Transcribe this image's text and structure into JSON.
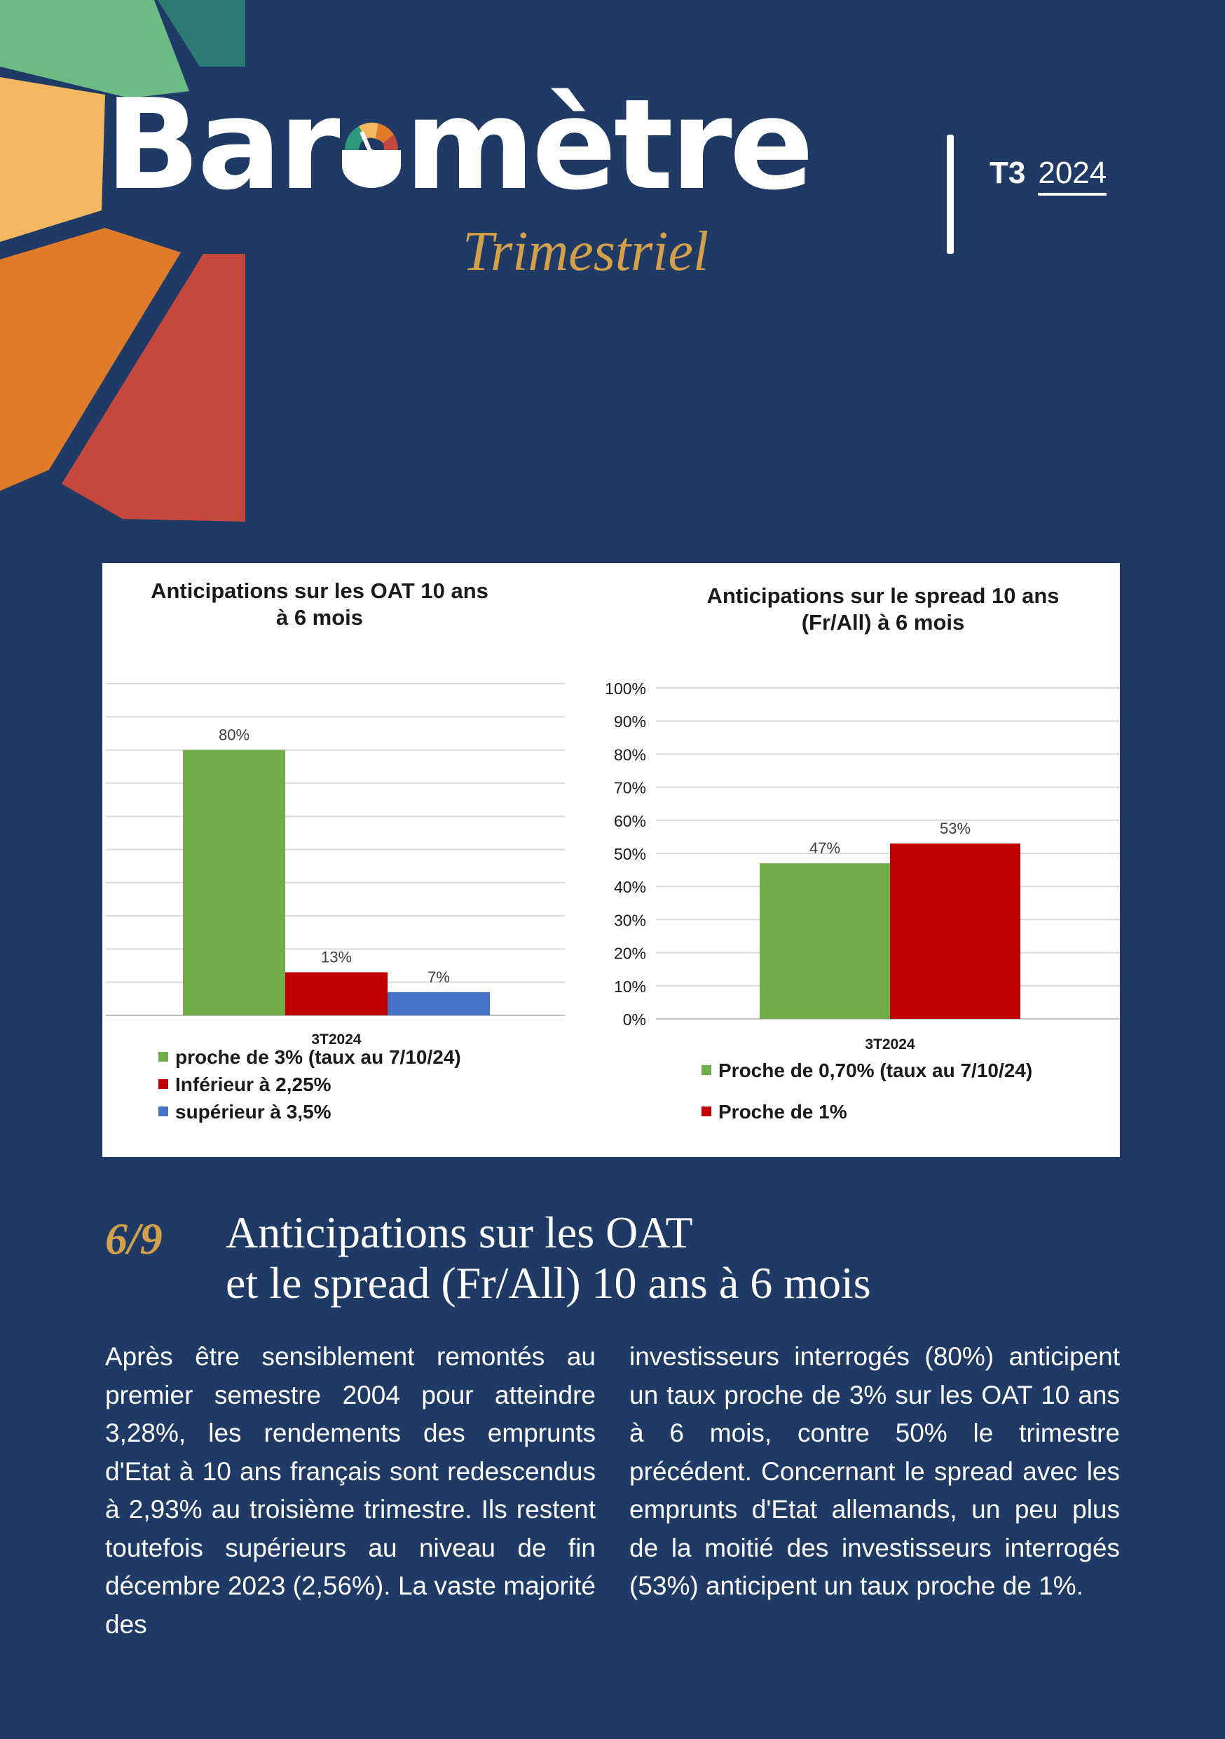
{
  "header": {
    "brand": "Baromètre",
    "brand_before": "Bar",
    "brand_after": "mètre",
    "subtitle": "Trimestriel",
    "quarter": "T3",
    "year": "2024"
  },
  "colors": {
    "background": "#203a66",
    "accent_gold": "#d4a04a",
    "green": "#70ad47",
    "red": "#c00000",
    "blue": "#4472c4"
  },
  "chart_data": [
    {
      "type": "bar",
      "title_lines": [
        "Anticipations sur les OAT 10 ans",
        "à 6 mois"
      ],
      "categories": [
        "3T2024"
      ],
      "series": [
        {
          "name": "proche de 3% (taux au 7/10/24)",
          "values": [
            80
          ],
          "color": "#70ad47",
          "label": "80%"
        },
        {
          "name": "Inférieur à 2,25%",
          "values": [
            13
          ],
          "color": "#c00000",
          "label": "13%"
        },
        {
          "name": "supérieur à 3,5%",
          "values": [
            7
          ],
          "color": "#4472c4",
          "label": "7%"
        }
      ],
      "ylim": [
        0,
        100
      ],
      "y_axis_labels_shown": false,
      "grid": true,
      "legend": "bottom-left"
    },
    {
      "type": "bar",
      "title_lines": [
        "Anticipations sur le spread 10 ans",
        "(Fr/All) à 6 mois"
      ],
      "categories": [
        "3T2024"
      ],
      "series": [
        {
          "name": "Proche de 0,70% (taux au 7/10/24)",
          "values": [
            47
          ],
          "color": "#70ad47",
          "label": "47%"
        },
        {
          "name": "Proche de 1%",
          "values": [
            53
          ],
          "color": "#c00000",
          "label": "53%"
        }
      ],
      "ylim": [
        0,
        100
      ],
      "yticks": [
        "0%",
        "10%",
        "20%",
        "30%",
        "40%",
        "50%",
        "60%",
        "70%",
        "80%",
        "90%",
        "100%"
      ],
      "grid": true,
      "legend": "bottom-left"
    }
  ],
  "section": {
    "number": "6/9",
    "title_line1": "Anticipations sur les OAT",
    "title_line2": "et le spread (Fr/All) 10 ans à 6 mois"
  },
  "body": {
    "col1": "Après être sensiblement remontés au premier semestre 2004 pour at­teindre 3,28%, les rendements des emprunts d'Etat à 10 ans français sont redescendus à 2,93% au troi­sième trimestre. Ils restent toutefois supérieurs au niveau de fin décembre 2023 (2,56%). La vaste majorité des",
    "col2": "investisseurs interrogés (80%) anti­cipent un taux proche de 3% sur les OAT 10 ans à 6 mois, contre 50% le trimestre précédent. Concernant le spread avec les emprunts d'Etat alle­mands, un peu plus de la moitié des investisseurs interrogés (53%) anti­cipent un taux proche de 1%."
  }
}
